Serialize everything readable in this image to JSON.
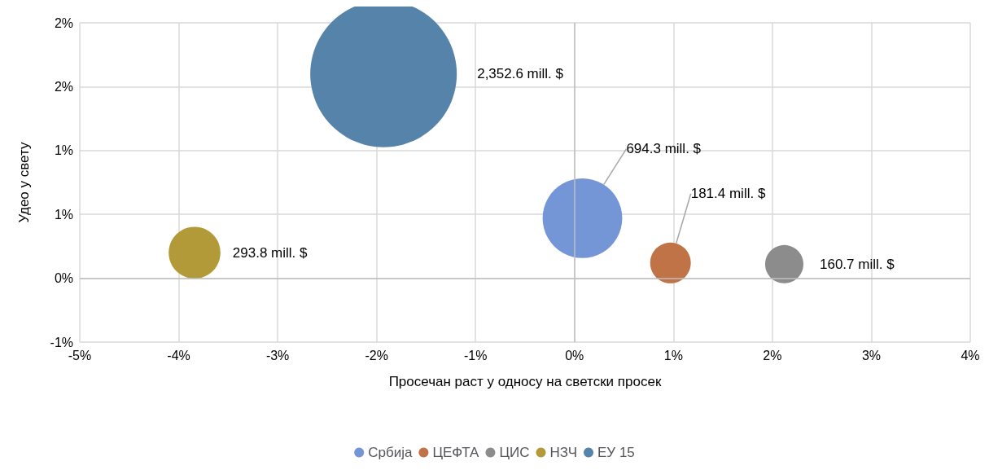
{
  "chart_data": {
    "type": "bubble",
    "xlabel": "Просечан раст у односу на светски просек",
    "ylabel": "Удео у свету",
    "xlim": [
      -5,
      4
    ],
    "xticks": [
      {
        "value": -5,
        "label": "-5%"
      },
      {
        "value": -4,
        "label": "-4%"
      },
      {
        "value": -3,
        "label": "-3%"
      },
      {
        "value": -2,
        "label": "-2%"
      },
      {
        "value": -1,
        "label": "-1%"
      },
      {
        "value": 0,
        "label": "0%"
      },
      {
        "value": 1,
        "label": "1%"
      },
      {
        "value": 2,
        "label": "2%"
      },
      {
        "value": 3,
        "label": "3%"
      },
      {
        "value": 4,
        "label": "4%"
      }
    ],
    "ylim": [
      -0.5,
      2
    ],
    "yticks": [
      {
        "value": -0.5,
        "label": "-1%"
      },
      {
        "value": 0,
        "label": "0%"
      },
      {
        "value": 0.5,
        "label": "1%"
      },
      {
        "value": 1,
        "label": "1%"
      },
      {
        "value": 1.5,
        "label": "2%"
      },
      {
        "value": 2,
        "label": "2%"
      }
    ],
    "grid": true,
    "legend": "bottom",
    "series": [
      {
        "name": "Србија",
        "color": "#7596d6",
        "x": [
          0.08
        ],
        "values": [
          0.47
        ],
        "sizes": [
          694.3
        ],
        "value_labels": [
          "694.3 mill. $"
        ]
      },
      {
        "name": "ЦЕФТА",
        "color": "#c07347",
        "x": [
          0.97
        ],
        "values": [
          0.12
        ],
        "sizes": [
          181.4
        ],
        "value_labels": [
          "181.4 mill. $"
        ]
      },
      {
        "name": "ЦИС",
        "color": "#8c8c8c",
        "x": [
          2.12
        ],
        "values": [
          0.11
        ],
        "sizes": [
          160.7
        ],
        "value_labels": [
          "160.7 mill. $"
        ]
      },
      {
        "name": "НЗЧ",
        "color": "#b29a39",
        "x": [
          -3.84
        ],
        "values": [
          0.2
        ],
        "sizes": [
          293.8
        ],
        "value_labels": [
          "293.8 mill. $"
        ]
      },
      {
        "name": "ЕУ 15",
        "color": "#5683aa",
        "x": [
          -1.93
        ],
        "values": [
          1.6
        ],
        "sizes": [
          2352.6
        ],
        "value_labels": [
          "2,352.6 mill. $"
        ]
      }
    ]
  }
}
